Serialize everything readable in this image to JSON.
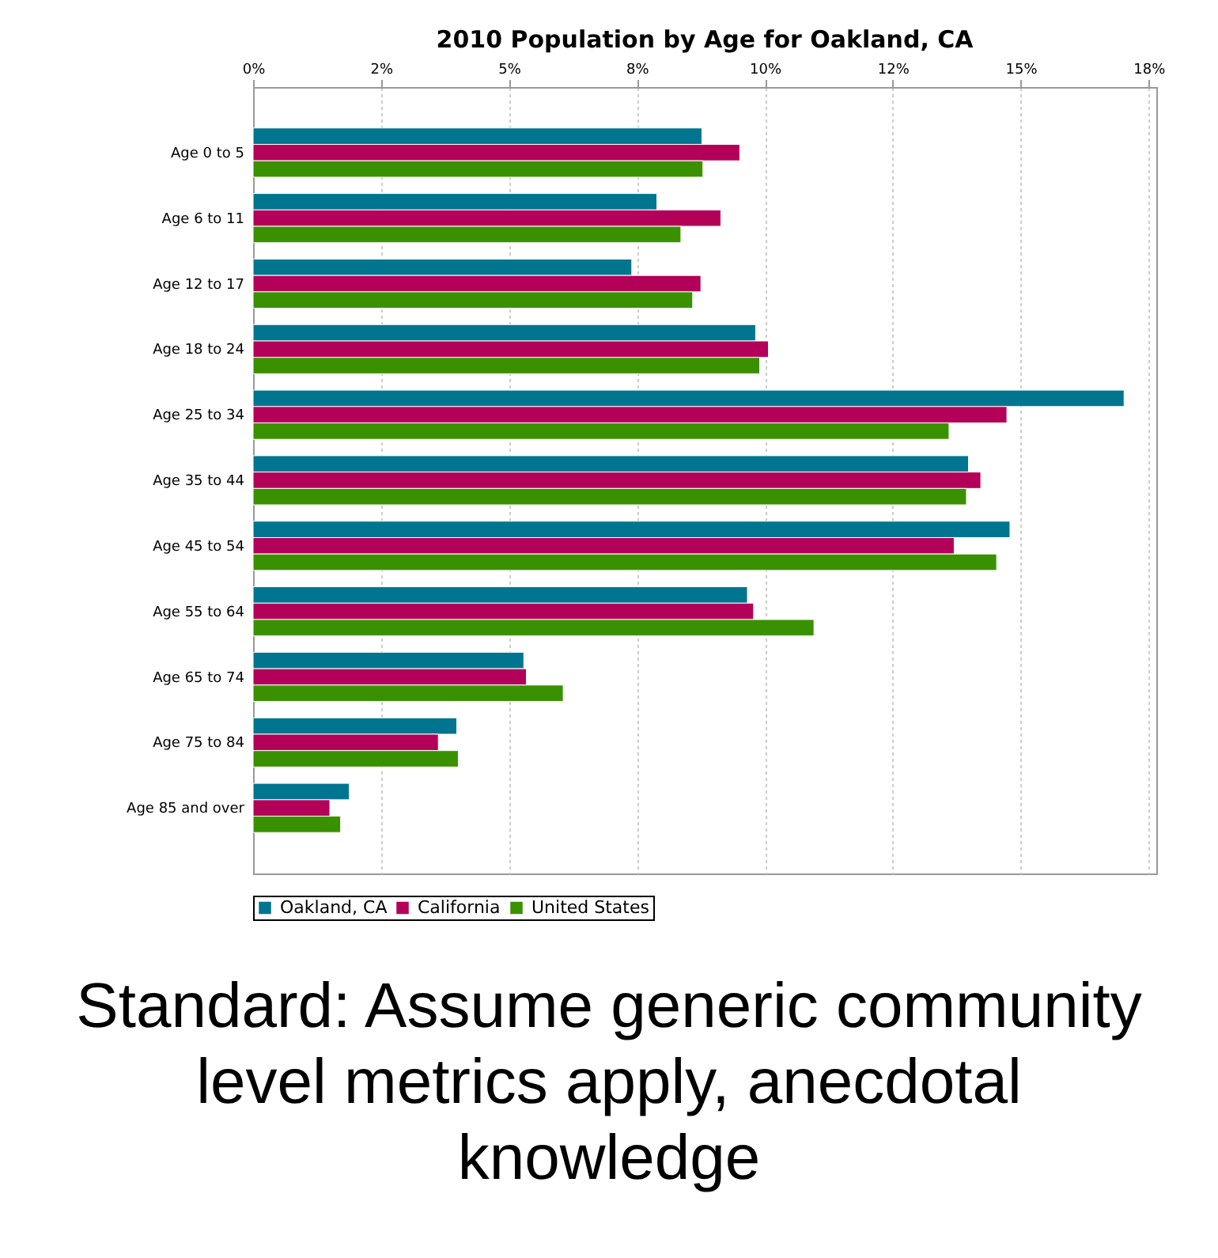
{
  "chart_data": {
    "type": "bar",
    "orientation": "horizontal",
    "title": "2010 Population by Age for Oakland, CA",
    "categories": [
      "Age 0 to 5",
      "Age 6 to 11",
      "Age 12 to 17",
      "Age 18 to 24",
      "Age 25 to 34",
      "Age 35 to 44",
      "Age 45 to 54",
      "Age 55 to 64",
      "Age 65 to 74",
      "Age 75 to 84",
      "Age 85 and over"
    ],
    "series": [
      {
        "name": "Oakland, CA",
        "color": "#00758f",
        "values": [
          8.77,
          7.89,
          7.4,
          9.82,
          17.02,
          13.98,
          14.79,
          9.66,
          5.29,
          3.98,
          1.88
        ]
      },
      {
        "name": "California",
        "color": "#b30059",
        "values": [
          9.51,
          9.14,
          8.75,
          10.07,
          14.73,
          14.22,
          13.7,
          9.78,
          5.34,
          3.62,
          1.5
        ]
      },
      {
        "name": "United States",
        "color": "#3a9100",
        "values": [
          8.79,
          8.36,
          8.59,
          9.9,
          13.6,
          13.94,
          14.53,
          10.96,
          6.06,
          4.01,
          1.71
        ]
      }
    ],
    "xlim": [
      0,
      17.65
    ],
    "xticks": [
      {
        "value": 0,
        "label": "0%"
      },
      {
        "value": 2.5,
        "label": "2%"
      },
      {
        "value": 5,
        "label": "5%"
      },
      {
        "value": 7.5,
        "label": "8%"
      },
      {
        "value": 10,
        "label": "10%"
      },
      {
        "value": 12.5,
        "label": "12%"
      },
      {
        "value": 15,
        "label": "15%"
      },
      {
        "value": 17.5,
        "label": "18%"
      }
    ],
    "grid": "x",
    "legend": "bottom",
    "annotations": [
      "Standard:  Assume generic community level metrics apply, anecdotal knowledge"
    ]
  }
}
